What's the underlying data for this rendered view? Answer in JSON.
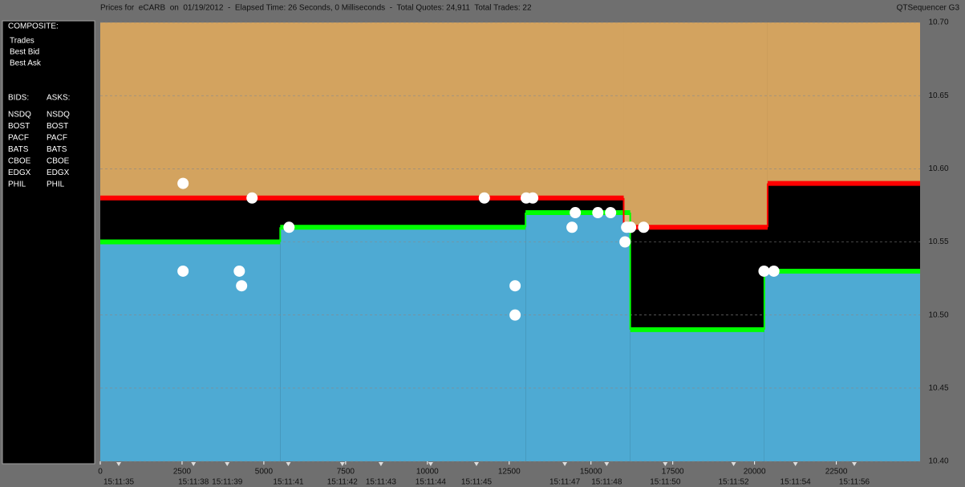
{
  "title": "Prices for  eCARB  on  01/19/2012  -  Elapsed Time: 26 Seconds, 0 Milliseconds  -  Total Quotes: 24,911  Total Trades: 22",
  "brand": "QTSequencer G3",
  "legend": {
    "composite_title": "COMPOSITE:",
    "bids_title": "BIDS:",
    "asks_title": "ASKS:",
    "exchanges": [
      {
        "name": "NSDQ",
        "bid_color": "#4f80ff",
        "ask_color": "#ff9040"
      },
      {
        "name": "BOST",
        "bid_color": "#a8d080",
        "ask_color": "#e88080"
      },
      {
        "name": "PACF",
        "bid_color": "#40ffff",
        "ask_color": "#ffff60"
      },
      {
        "name": "BATS",
        "bid_color": "#80c8ff",
        "ask_color": "#ffd080"
      },
      {
        "name": "CBOE",
        "bid_color": "#2848c8",
        "ask_color": "#c86020"
      },
      {
        "name": "EDGX",
        "bid_color": "#30a030",
        "ask_color": "#a85030"
      },
      {
        "name": "PHIL",
        "bid_color": "#88a868",
        "ask_color": "#c070a8"
      }
    ]
  },
  "chart_data": {
    "type": "scatter",
    "grid": true,
    "step": true,
    "xlim": [
      0,
      25060
    ],
    "ylim": [
      10.4,
      10.7
    ],
    "xticks": [
      0,
      2500,
      5000,
      7500,
      10000,
      12500,
      15000,
      17500,
      20000,
      22500
    ],
    "time_ticks": [
      {
        "value": 565,
        "label": "15:11:35"
      },
      {
        "value": 2850,
        "label": "15:11:38"
      },
      {
        "value": 3880,
        "label": "15:11:39"
      },
      {
        "value": 5750,
        "label": "15:11:41"
      },
      {
        "value": 7400,
        "label": "15:11:42"
      },
      {
        "value": 8580,
        "label": "15:11:43"
      },
      {
        "value": 10100,
        "label": "15:11:44"
      },
      {
        "value": 11500,
        "label": "15:11:45"
      },
      {
        "value": 14200,
        "label": "15:11:47"
      },
      {
        "value": 15480,
        "label": "15:11:48"
      },
      {
        "value": 17270,
        "label": "15:11:50"
      },
      {
        "value": 19360,
        "label": "15:11:52"
      },
      {
        "value": 21250,
        "label": "15:11:54"
      },
      {
        "value": 23050,
        "label": "15:11:56"
      }
    ],
    "yticks": [
      {
        "value": 10.4,
        "label": "10.40"
      },
      10.45,
      {
        "value": 10.5,
        "label": "10.50"
      },
      10.55,
      {
        "value": 10.6,
        "label": "10.60"
      },
      10.65,
      {
        "value": 10.7,
        "label": "10.70"
      }
    ],
    "series": [
      {
        "name": "Trades",
        "color": "#ffffff",
        "x": [
          2530,
          4640,
          5770,
          2530,
          4250,
          4320,
          12680,
          12680,
          11740,
          13020,
          13220,
          14520,
          14420,
          15210,
          15600,
          16090,
          16210,
          16040,
          16610,
          20290,
          20590,
          16210
        ],
        "values": [
          10.59,
          10.58,
          10.56,
          10.53,
          10.53,
          10.52,
          10.52,
          10.5,
          10.58,
          10.58,
          10.58,
          10.57,
          10.56,
          10.57,
          10.57,
          10.56,
          10.56,
          10.55,
          10.56,
          10.53,
          10.53,
          10.56
        ]
      },
      {
        "name": "Best Bid",
        "color": "#00ff00",
        "fill": "#5cc8f8",
        "x": [
          0,
          5500,
          13000,
          16200,
          20300
        ],
        "values": [
          10.55,
          10.56,
          10.57,
          10.49,
          10.53
        ]
      },
      {
        "name": "Best Ask",
        "color": "#ff0000",
        "fill": "#f8c070",
        "x": [
          0,
          16000,
          20400
        ],
        "values": [
          10.58,
          10.56,
          10.59
        ]
      }
    ]
  }
}
